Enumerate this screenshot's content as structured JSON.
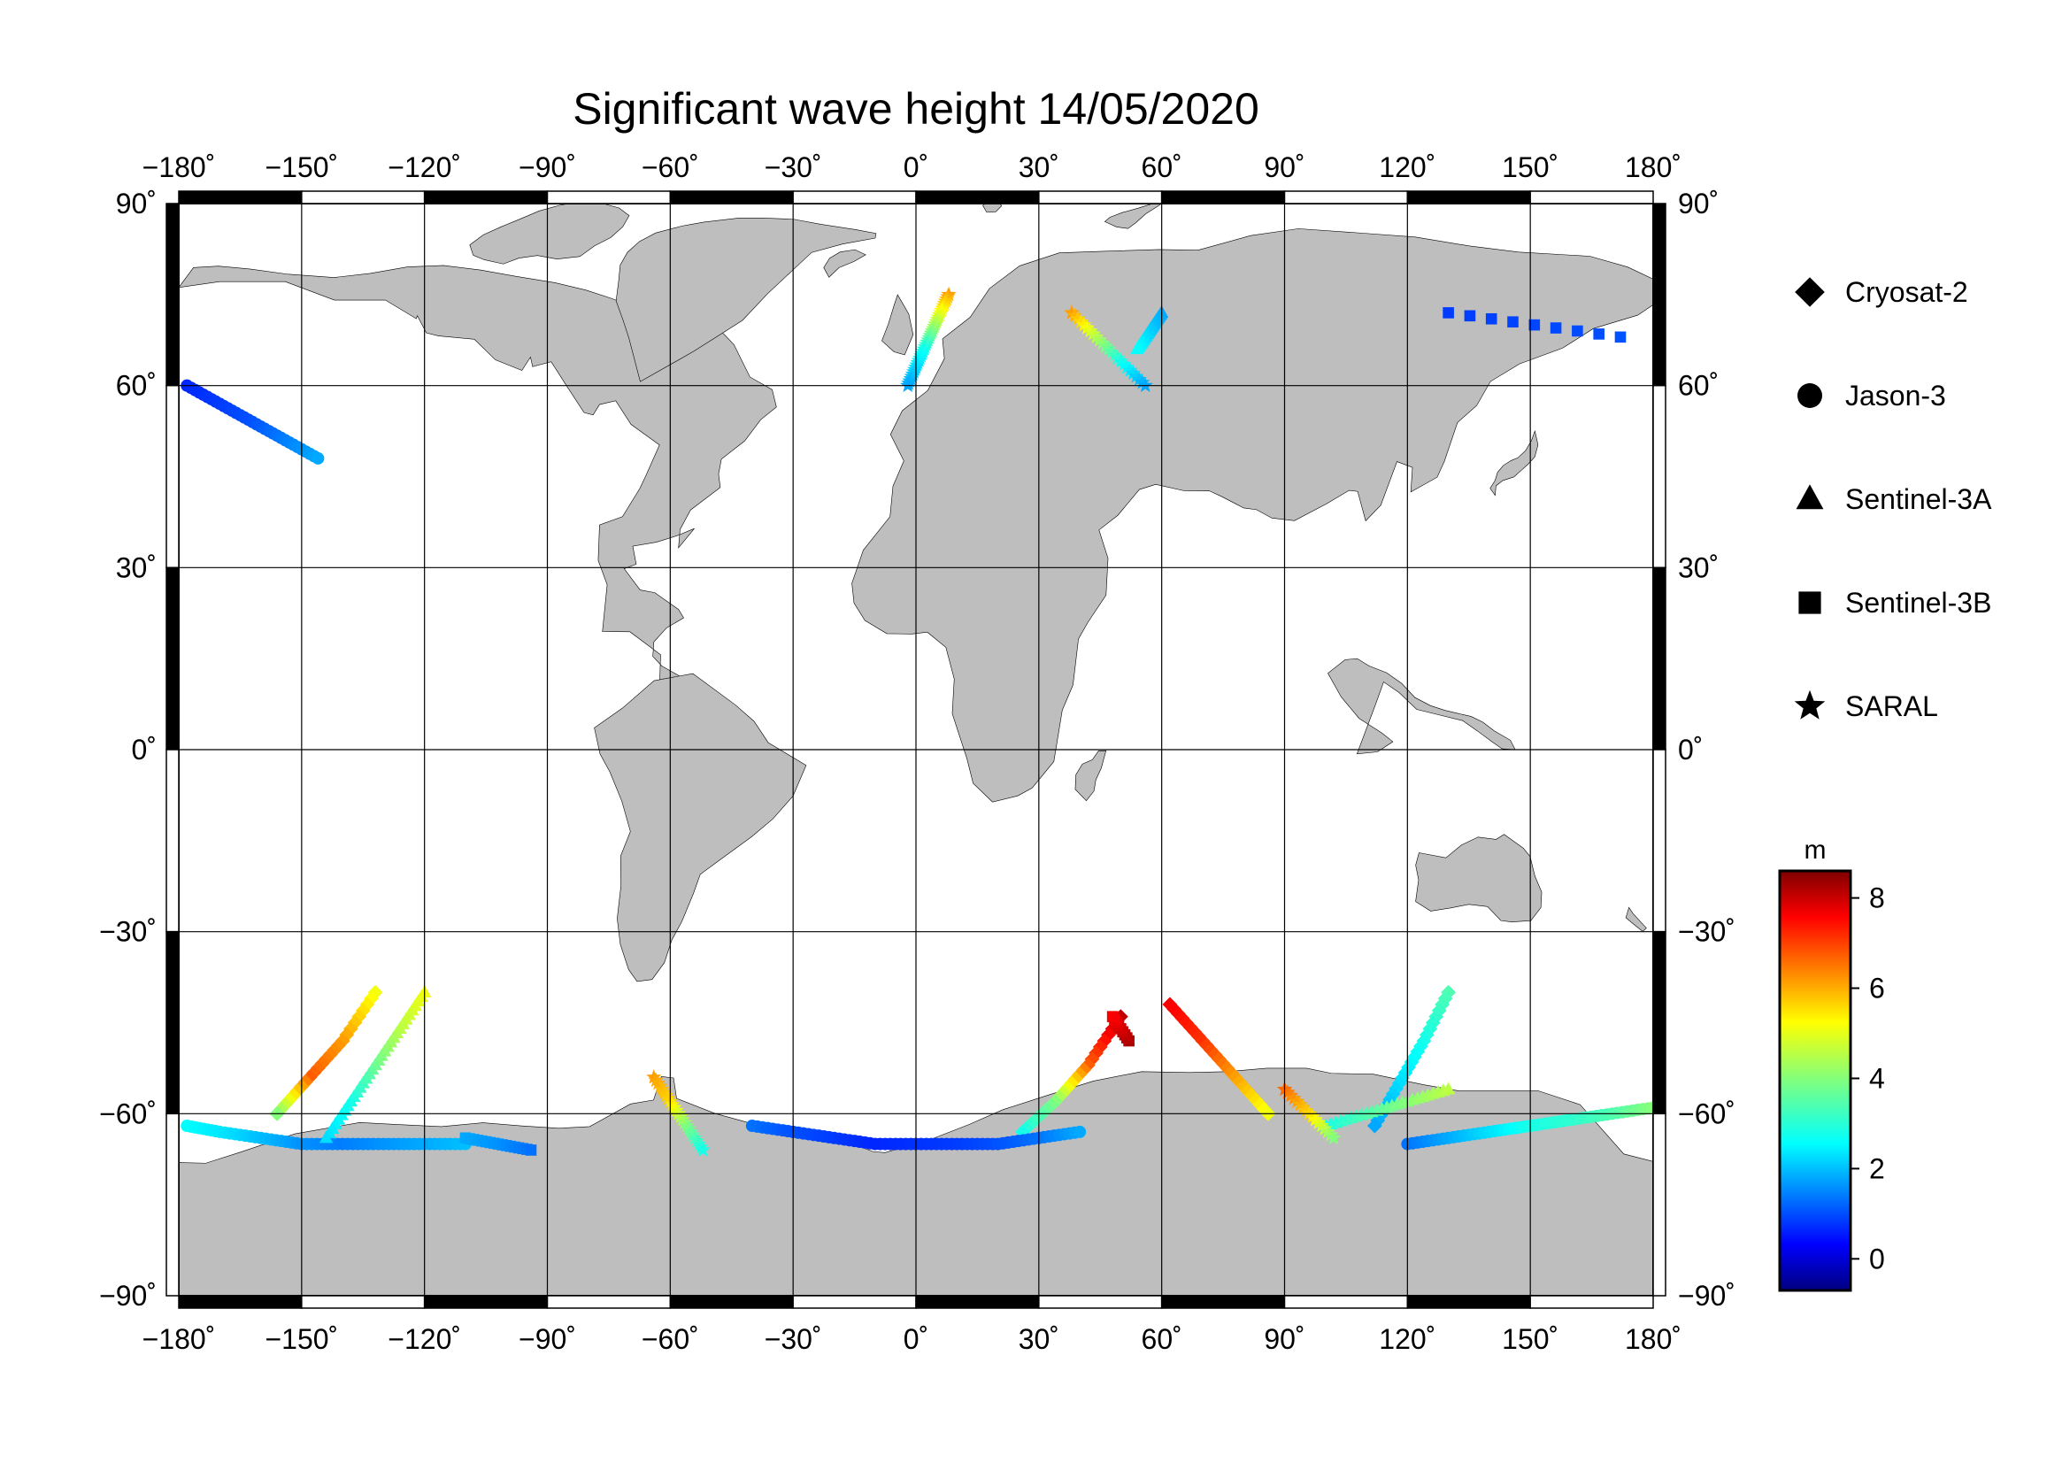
{
  "title": "Significant wave height 14/05/2020",
  "map": {
    "projection": "equirectangular",
    "lon_range": [
      -180,
      180
    ],
    "lat_range": [
      -90,
      90
    ],
    "grid": true,
    "land_color": "#bebebe",
    "ocean_color": "#ffffff",
    "lon_ticks": [
      {
        "value": -180,
        "label": "−180˚"
      },
      {
        "value": -150,
        "label": "−150˚"
      },
      {
        "value": -120,
        "label": "−120˚"
      },
      {
        "value": -90,
        "label": "−90˚"
      },
      {
        "value": -60,
        "label": "−60˚"
      },
      {
        "value": -30,
        "label": "−30˚"
      },
      {
        "value": 0,
        "label": "0˚"
      },
      {
        "value": 30,
        "label": "30˚"
      },
      {
        "value": 60,
        "label": "60˚"
      },
      {
        "value": 90,
        "label": "90˚"
      },
      {
        "value": 120,
        "label": "120˚"
      },
      {
        "value": 150,
        "label": "150˚"
      },
      {
        "value": 180,
        "label": "180˚"
      }
    ],
    "lat_ticks": [
      {
        "value": 90,
        "label": "90˚"
      },
      {
        "value": 60,
        "label": "60˚"
      },
      {
        "value": 30,
        "label": "30˚"
      },
      {
        "value": 0,
        "label": "0˚"
      },
      {
        "value": -30,
        "label": "−30˚"
      },
      {
        "value": -60,
        "label": "−60˚"
      },
      {
        "value": -90,
        "label": "−90˚"
      }
    ]
  },
  "legend": {
    "placement": "right",
    "items": [
      {
        "name": "Cryosat-2",
        "marker": "diamond"
      },
      {
        "name": "Jason-3",
        "marker": "circle"
      },
      {
        "name": "Sentinel-3A",
        "marker": "triangle"
      },
      {
        "name": "Sentinel-3B",
        "marker": "square"
      },
      {
        "name": "SARAL",
        "marker": "star"
      }
    ]
  },
  "colorbar": {
    "unit": "m",
    "range": [
      -0.7,
      8.6
    ],
    "colormap": "jet",
    "ticks": [
      {
        "value": 0,
        "label": "0"
      },
      {
        "value": 2,
        "label": "2"
      },
      {
        "value": 4,
        "label": "4"
      },
      {
        "value": 6,
        "label": "6"
      },
      {
        "value": 8,
        "label": "8"
      }
    ]
  },
  "chart_data": {
    "type": "scatter",
    "title": "Significant wave height 14/05/2020",
    "xlabel": "",
    "ylabel": "",
    "xlim": [
      -180,
      180
    ],
    "ylim": [
      -90,
      90
    ],
    "color_variable": "significant wave height (m)",
    "series": [
      {
        "name": "Cryosat-2",
        "marker": "diamond",
        "tracks": [
          {
            "lon": [
              50,
              42,
              34,
              26
            ],
            "lat": [
              -44,
              -52,
              -58,
              -63
            ],
            "swh": [
              8.0,
              6.6,
              4.0,
              3.0
            ]
          },
          {
            "lon": [
              62,
              70,
              78,
              86
            ],
            "lat": [
              -42,
              -48,
              -54,
              -60
            ],
            "swh": [
              7.5,
              7.0,
              6.0,
              5.0
            ]
          },
          {
            "lon": [
              -132,
              -140,
              -148,
              -156
            ],
            "lat": [
              -40,
              -48,
              -54,
              -60
            ],
            "swh": [
              5.0,
              6.0,
              6.6,
              4.0
            ]
          },
          {
            "lon": [
              130,
              124,
              118,
              112
            ],
            "lat": [
              -40,
              -48,
              -55,
              -62
            ],
            "swh": [
              3.5,
              3.0,
              2.5,
              2.0
            ]
          }
        ]
      },
      {
        "name": "Jason-3",
        "marker": "circle",
        "tracks": [
          {
            "lon": [
              -178,
              -170,
              -160,
              -150,
              -140,
              -130,
              -120,
              -110
            ],
            "lat": [
              -62,
              -63,
              -64,
              -65,
              -65,
              -65,
              -65,
              -65
            ],
            "swh": [
              2.8,
              2.6,
              2.2,
              1.8,
              1.6,
              1.8,
              2.0,
              2.2
            ]
          },
          {
            "lon": [
              -40,
              -30,
              -20,
              -10,
              0,
              10,
              20,
              30,
              40
            ],
            "lat": [
              -62,
              -63,
              -64,
              -65,
              -65,
              -65,
              -65,
              -64,
              -63
            ],
            "swh": [
              1.5,
              1.2,
              1.0,
              0.8,
              0.9,
              1.0,
              1.2,
              1.5,
              2.0
            ]
          },
          {
            "lon": [
              120,
              130,
              140,
              150,
              160,
              170,
              180
            ],
            "lat": [
              -65,
              -64,
              -63,
              -62,
              -61,
              -60,
              -59
            ],
            "swh": [
              1.5,
              2.0,
              2.5,
              3.0,
              3.2,
              3.5,
              4.0
            ]
          },
          {
            "lon": [
              -178,
              -170,
              -162,
              -154,
              -146
            ],
            "lat": [
              60,
              57,
              54,
              51,
              48
            ],
            "swh": [
              0.8,
              1.0,
              1.2,
              1.6,
              2.0
            ]
          }
        ]
      },
      {
        "name": "Sentinel-3A",
        "marker": "triangle",
        "tracks": [
          {
            "lon": [
              -120,
              -126,
              -132,
              -138,
              -144
            ],
            "lat": [
              -40,
              -46,
              -52,
              -58,
              -64
            ],
            "swh": [
              5.0,
              4.5,
              3.8,
              3.0,
              2.5
            ]
          },
          {
            "lon": [
              100,
              110,
              120,
              130
            ],
            "lat": [
              -62,
              -60,
              -58,
              -56
            ],
            "swh": [
              3.0,
              3.5,
              4.0,
              4.5
            ]
          },
          {
            "lon": [
              60,
              58,
              56,
              54
            ],
            "lat": [
              72,
              70,
              68,
              66
            ],
            "swh": [
              2.0,
              2.2,
              2.5,
              2.8
            ]
          }
        ]
      },
      {
        "name": "Sentinel-3B",
        "marker": "square",
        "tracks": [
          {
            "lon": [
              130,
              172
            ],
            "lat": [
              72,
              68
            ],
            "swh": [
              1.0,
              1.2
            ]
          },
          {
            "lon": [
              -110,
              -102,
              -94
            ],
            "lat": [
              -64,
              -65,
              -66
            ],
            "swh": [
              2.0,
              1.8,
              1.5
            ]
          },
          {
            "lon": [
              52,
              48
            ],
            "lat": [
              -48,
              -44
            ],
            "swh": [
              8.2,
              7.5
            ]
          }
        ]
      },
      {
        "name": "SARAL",
        "marker": "star",
        "tracks": [
          {
            "lon": [
              8,
              6,
              4,
              2,
              0,
              -2
            ],
            "lat": [
              75,
              72,
              69,
              66,
              63,
              60
            ],
            "swh": [
              6.0,
              5.0,
              4.0,
              3.0,
              2.5,
              2.0
            ]
          },
          {
            "lon": [
              38,
              44,
              50,
              56
            ],
            "lat": [
              72,
              68,
              64,
              60
            ],
            "swh": [
              6.0,
              4.5,
              3.0,
              2.0
            ]
          },
          {
            "lon": [
              -64,
              -60,
              -56,
              -52
            ],
            "lat": [
              -54,
              -58,
              -62,
              -66
            ],
            "swh": [
              6.0,
              5.5,
              4.0,
              3.0
            ]
          },
          {
            "lon": [
              90,
              96,
              102
            ],
            "lat": [
              -56,
              -60,
              -64
            ],
            "swh": [
              6.5,
              5.5,
              4.0
            ]
          }
        ]
      }
    ]
  }
}
